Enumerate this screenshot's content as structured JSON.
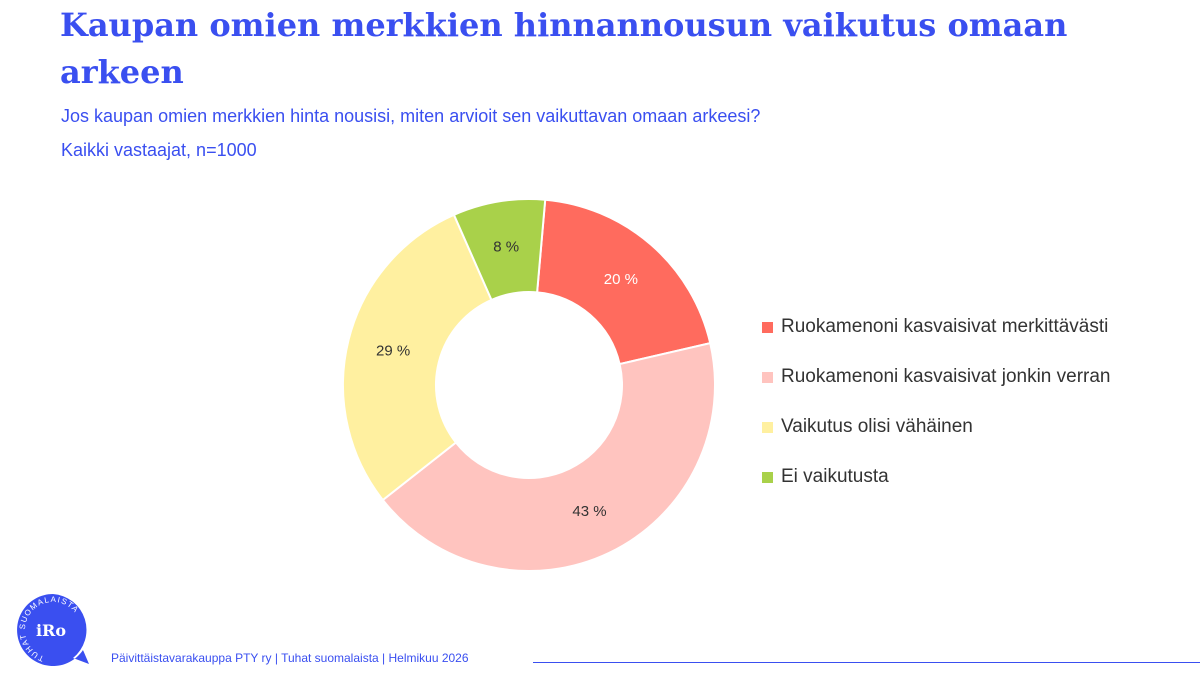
{
  "header": {
    "title": "Kaupan omien merkkien hinnannousun vaikutus omaan arkeen",
    "subtitle": "Jos kaupan omien merkkien hinta nousisi, miten arvioit sen vaikuttavan omaan arkeesi?",
    "sample": "Kaikki vastaajat, n=1000"
  },
  "chart_data": {
    "type": "pie",
    "style": "donut",
    "categories": [
      "Ruokamenoni kasvaisivat merkittävästi",
      "Ruokamenoni kasvaisivat jonkin verran",
      "Vaikutus olisi vähäinen",
      "Ei vaikutusta"
    ],
    "values": [
      20,
      43,
      29,
      8
    ],
    "labels": [
      "20 %",
      "43 %",
      "29 %",
      "8 %"
    ],
    "colors": [
      "#ff6b5e",
      "#ffc4bf",
      "#fff0a0",
      "#a9d14a"
    ],
    "label_colors": [
      "#ffffff",
      "#333333",
      "#333333",
      "#333333"
    ],
    "legend_position": "right"
  },
  "footer": {
    "text": "Päivittäistavarakauppa PTY ry | Tuhat suomalaista | Helmikuu 2026"
  },
  "logo": {
    "ring_text": "TUHAT SUOMALAISTA",
    "mark": "iRo",
    "registered": "®"
  }
}
